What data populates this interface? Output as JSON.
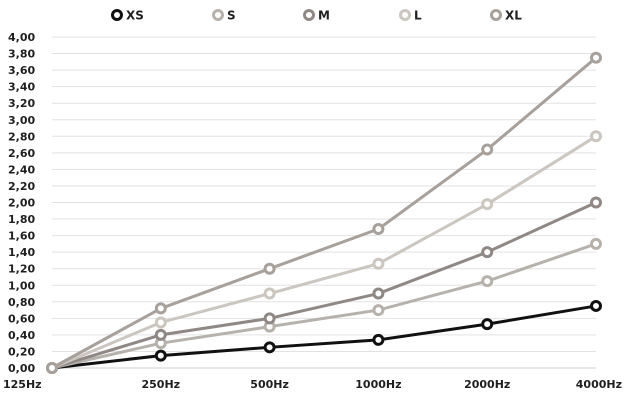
{
  "chart_data": {
    "type": "line",
    "categories": [
      "125Hz",
      "250Hz",
      "500Hz",
      "1000Hz",
      "2000Hz",
      "4000Hz"
    ],
    "ylim": [
      0,
      4
    ],
    "yticks": [
      "0,00",
      "0,20",
      "0,40",
      "0,60",
      "0,80",
      "1,00",
      "1,20",
      "1,40",
      "1,60",
      "1,80",
      "2,00",
      "2,20",
      "2,40",
      "2,60",
      "2,80",
      "3,00",
      "3,20",
      "3,40",
      "3,60",
      "3,80",
      "4,00"
    ],
    "grid": true,
    "legend_position": "top",
    "series": [
      {
        "name": "XS",
        "color": "#111111",
        "values": [
          0,
          0.15,
          0.25,
          0.34,
          0.53,
          0.75
        ]
      },
      {
        "name": "S",
        "color": "#b7b1ac",
        "values": [
          0,
          0.3,
          0.5,
          0.7,
          1.05,
          1.5
        ]
      },
      {
        "name": "M",
        "color": "#8f8884",
        "values": [
          0,
          0.4,
          0.6,
          0.9,
          1.4,
          2.0
        ]
      },
      {
        "name": "L",
        "color": "#cbc6bf",
        "values": [
          0,
          0.55,
          0.9,
          1.26,
          1.98,
          2.8
        ]
      },
      {
        "name": "XL",
        "color": "#a7a09b",
        "values": [
          0,
          0.72,
          1.2,
          1.68,
          2.64,
          3.75
        ]
      }
    ]
  }
}
